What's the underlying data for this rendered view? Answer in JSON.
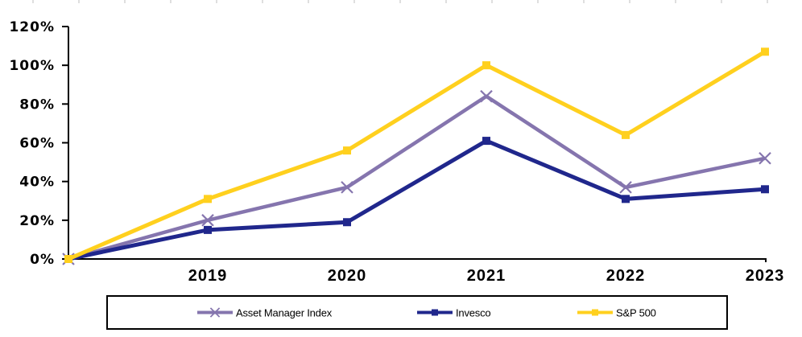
{
  "chart_data": {
    "type": "line",
    "title": "",
    "categories": [
      "",
      "2019",
      "2020",
      "2021",
      "2022",
      "2023"
    ],
    "x_tick_labels": [
      "2019",
      "2020",
      "2021",
      "2022",
      "2023"
    ],
    "y_tick_labels": [
      "120%",
      "100%",
      "80%",
      "60%",
      "40%",
      "20%",
      "0%"
    ],
    "y_tick_values": [
      120,
      100,
      80,
      60,
      40,
      20,
      0
    ],
    "ylim": [
      0,
      120
    ],
    "grid": "off",
    "legend_position": "bottom",
    "axis_color": "#000000",
    "series": [
      {
        "name": "Asset Manager Index",
        "color": "#8575AE",
        "marker": "x",
        "values": [
          0,
          20,
          37,
          84,
          37,
          52
        ]
      },
      {
        "name": "Invesco",
        "color": "#20278C",
        "marker": "square",
        "values": [
          0,
          15,
          19,
          61,
          31,
          36
        ]
      },
      {
        "name": "S&P 500",
        "color": "#FFD01E",
        "marker": "square",
        "values": [
          0,
          31,
          56,
          100,
          64,
          107
        ]
      }
    ]
  }
}
